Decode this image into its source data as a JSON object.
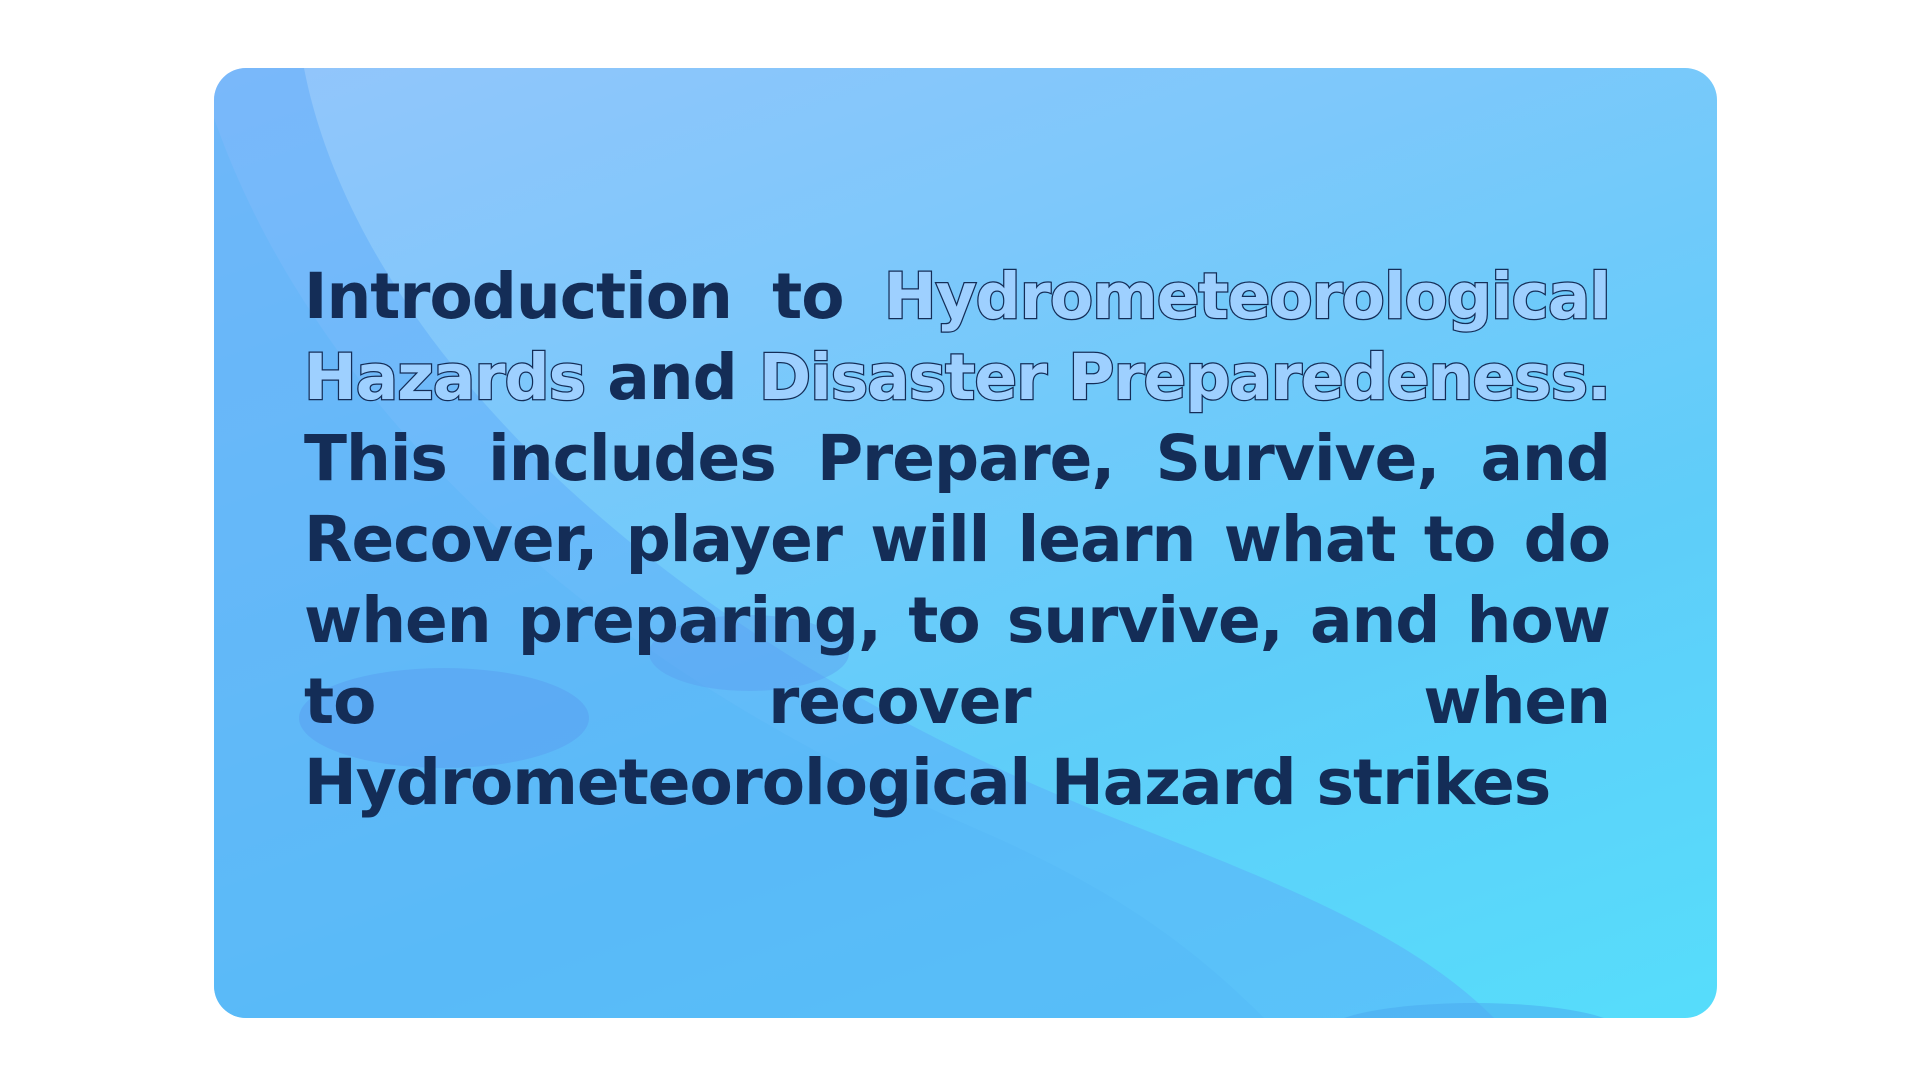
{
  "intro": {
    "lead": "Introduction to",
    "highlight_1": "Hydrometeorological Hazards",
    "connector": "and",
    "highlight_2": "Disaster Preparedeness.",
    "body": "This includes Prepare, Survive, and Recover, player will learn what to do when preparing, to survive, and how to recover when Hydrometeorological Hazard strikes"
  },
  "colors": {
    "page_background": "#ffffff",
    "card_gradient_start": "#93c5fb",
    "card_gradient_end": "#56ddfb",
    "text": "#142d57",
    "outline_fill": "#9ed0ff"
  }
}
